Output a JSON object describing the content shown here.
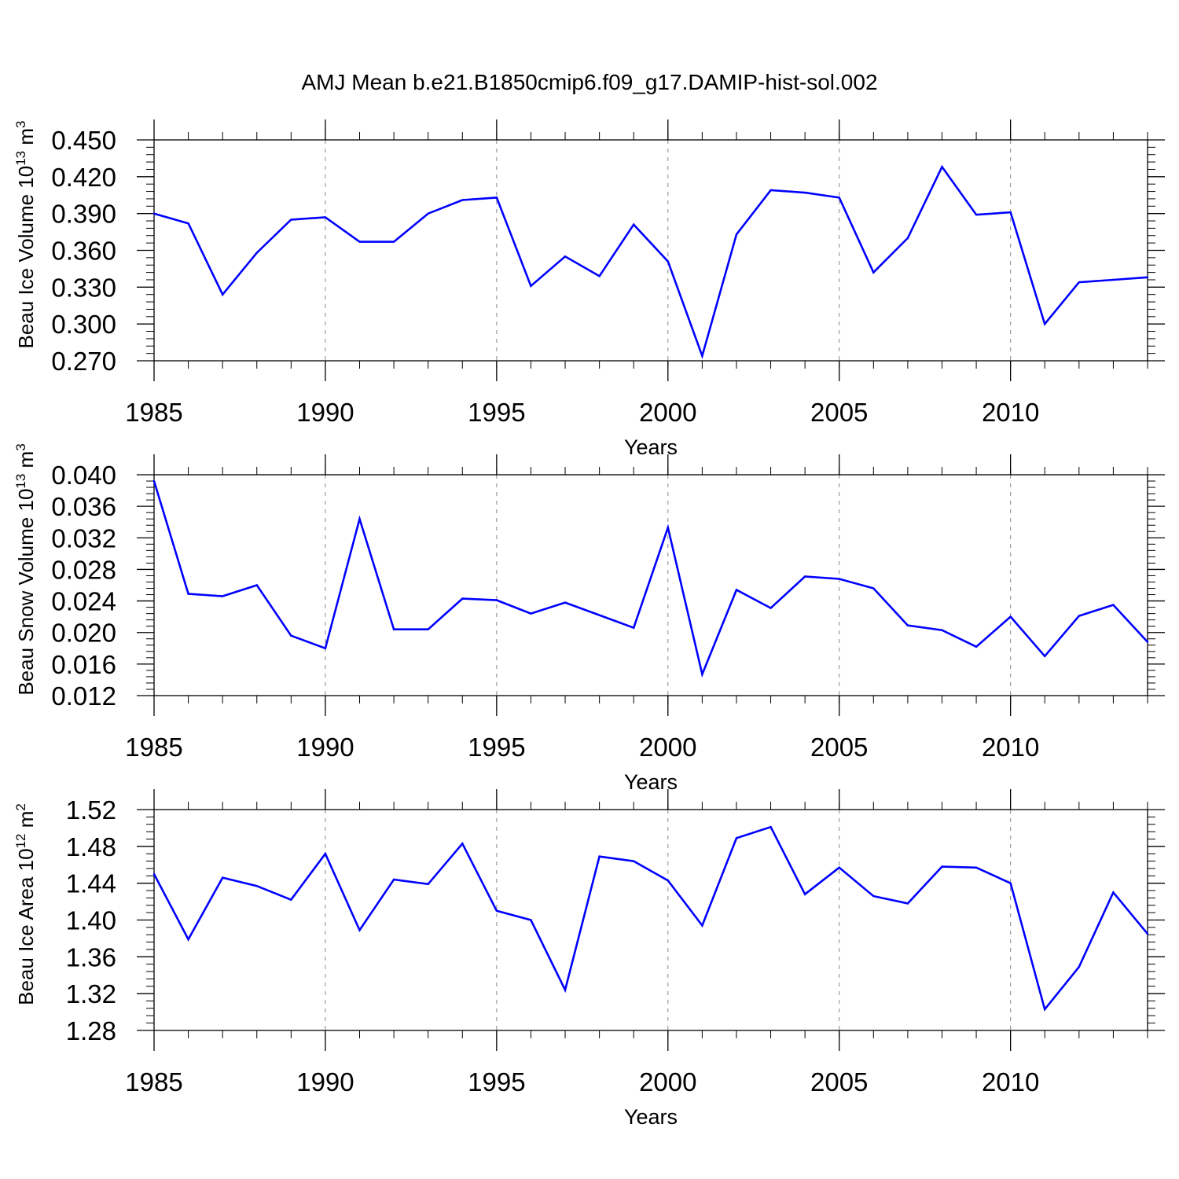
{
  "title": "AMJ Mean b.e21.B1850cmip6.f09_g17.DAMIP-hist-sol.002",
  "colors": {
    "line": "#0000ff",
    "axis": "#000000",
    "grid": "#888888"
  },
  "chart_data": [
    {
      "type": "line",
      "ylabel_main": "Beau Ice Volume 10",
      "ylabel_exp": "13",
      "ylabel_unit": "m",
      "ylabel_unit_exp": "3",
      "xlabel": "Years",
      "xlim": [
        1985,
        2014
      ],
      "ylim": [
        0.27,
        0.45
      ],
      "yticks": [
        "0.450",
        "0.420",
        "0.390",
        "0.360",
        "0.330",
        "0.300",
        "0.270"
      ],
      "xticks": [
        "1985",
        "1990",
        "1995",
        "2000",
        "2005",
        "2010"
      ],
      "grid": "vertical dashed at major x ticks",
      "x": [
        1985,
        1986,
        1987,
        1988,
        1989,
        1990,
        1991,
        1992,
        1993,
        1994,
        1995,
        1996,
        1997,
        1998,
        1999,
        2000,
        2001,
        2002,
        2003,
        2004,
        2005,
        2006,
        2007,
        2008,
        2009,
        2010,
        2011,
        2012,
        2013,
        2014
      ],
      "values": [
        0.39,
        0.382,
        0.324,
        0.358,
        0.385,
        0.387,
        0.367,
        0.367,
        0.39,
        0.401,
        0.403,
        0.331,
        0.355,
        0.339,
        0.381,
        0.351,
        0.274,
        0.373,
        0.409,
        0.407,
        0.403,
        0.342,
        0.37,
        0.428,
        0.389,
        0.391,
        0.3,
        0.334,
        0.336,
        0.338
      ]
    },
    {
      "type": "line",
      "ylabel_main": "Beau Snow Volume 10",
      "ylabel_exp": "13",
      "ylabel_unit": "m",
      "ylabel_unit_exp": "3",
      "xlabel": "Years",
      "xlim": [
        1985,
        2014
      ],
      "ylim": [
        0.012,
        0.04
      ],
      "yticks": [
        "0.040",
        "0.036",
        "0.032",
        "0.028",
        "0.024",
        "0.020",
        "0.016",
        "0.012"
      ],
      "xticks": [
        "1985",
        "1990",
        "1995",
        "2000",
        "2005",
        "2010"
      ],
      "grid": "vertical dashed at major x ticks",
      "x": [
        1985,
        1986,
        1987,
        1988,
        1989,
        1990,
        1991,
        1992,
        1993,
        1994,
        1995,
        1996,
        1997,
        1998,
        1999,
        2000,
        2001,
        2002,
        2003,
        2004,
        2005,
        2006,
        2007,
        2008,
        2009,
        2010,
        2011,
        2012,
        2013,
        2014
      ],
      "values": [
        0.0392,
        0.0249,
        0.0246,
        0.026,
        0.0196,
        0.018,
        0.0344,
        0.0204,
        0.0204,
        0.0243,
        0.0241,
        0.0224,
        0.0238,
        0.0222,
        0.0206,
        0.0333,
        0.0147,
        0.0254,
        0.0231,
        0.0271,
        0.0268,
        0.0256,
        0.0209,
        0.0203,
        0.0182,
        0.022,
        0.017,
        0.0221,
        0.0235,
        0.0188
      ]
    },
    {
      "type": "line",
      "ylabel_main": "Beau Ice Area 10",
      "ylabel_exp": "12",
      "ylabel_unit": "m",
      "ylabel_unit_exp": "2",
      "xlabel": "Years",
      "xlim": [
        1985,
        2014
      ],
      "ylim": [
        1.28,
        1.52
      ],
      "yticks": [
        "1.52",
        "1.48",
        "1.44",
        "1.40",
        "1.36",
        "1.32",
        "1.28"
      ],
      "xticks": [
        "1985",
        "1990",
        "1995",
        "2000",
        "2005",
        "2010"
      ],
      "grid": "vertical dashed at major x ticks",
      "x": [
        1985,
        1986,
        1987,
        1988,
        1989,
        1990,
        1991,
        1992,
        1993,
        1994,
        1995,
        1996,
        1997,
        1998,
        1999,
        2000,
        2001,
        2002,
        2003,
        2004,
        2005,
        2006,
        2007,
        2008,
        2009,
        2010,
        2011,
        2012,
        2013,
        2014
      ],
      "values": [
        1.45,
        1.379,
        1.446,
        1.437,
        1.422,
        1.472,
        1.389,
        1.444,
        1.439,
        1.483,
        1.41,
        1.4,
        1.324,
        1.469,
        1.464,
        1.443,
        1.394,
        1.489,
        1.501,
        1.428,
        1.457,
        1.426,
        1.418,
        1.458,
        1.457,
        1.44,
        1.303,
        1.349,
        1.43,
        1.385
      ]
    }
  ]
}
